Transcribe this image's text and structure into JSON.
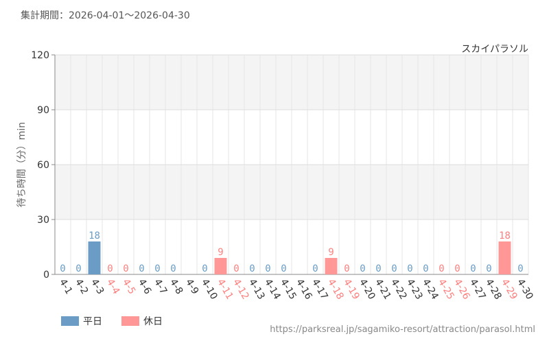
{
  "header": {
    "period": "集計期間：2026-04-01～2026-04-30"
  },
  "footer": {
    "source_url": "https://parksreal.jp/sagamiko-resort/attraction/parasol.html"
  },
  "colors": {
    "weekday": "#6a9cc5",
    "holiday": "#ff9797",
    "weekday_text": "#333333",
    "holiday_text": "#ff7f7f"
  },
  "chart_data": {
    "type": "bar",
    "title": "スカイパラソル",
    "ylabel": "待ち時間（分）min",
    "xlabel": "",
    "ylim": [
      0,
      120
    ],
    "yticks": [
      0,
      30,
      60,
      90,
      120
    ],
    "grid": true,
    "legend_position": "bottom-left",
    "categories": [
      "4-1",
      "4-2",
      "4-3",
      "4-4",
      "4-5",
      "4-6",
      "4-7",
      "4-8",
      "4-9",
      "4-10",
      "4-11",
      "4-12",
      "4-13",
      "4-14",
      "4-15",
      "4-16",
      "4-17",
      "4-18",
      "4-19",
      "4-20",
      "4-21",
      "4-22",
      "4-23",
      "4-24",
      "4-25",
      "4-26",
      "4-27",
      "4-28",
      "4-29",
      "4-30"
    ],
    "values": [
      0,
      0,
      18,
      0,
      0,
      0,
      0,
      0,
      null,
      0,
      9,
      0,
      0,
      0,
      0,
      null,
      0,
      9,
      0,
      0,
      0,
      0,
      0,
      0,
      0,
      0,
      0,
      0,
      18,
      0
    ],
    "day_type": [
      "weekday",
      "weekday",
      "weekday",
      "holiday",
      "holiday",
      "weekday",
      "weekday",
      "weekday",
      "weekday",
      "weekday",
      "holiday",
      "holiday",
      "weekday",
      "weekday",
      "weekday",
      "weekday",
      "weekday",
      "holiday",
      "holiday",
      "weekday",
      "weekday",
      "weekday",
      "weekday",
      "weekday",
      "holiday",
      "holiday",
      "weekday",
      "weekday",
      "holiday",
      "weekday"
    ],
    "series": [
      {
        "name": "平日",
        "key": "weekday"
      },
      {
        "name": "休日",
        "key": "holiday"
      }
    ]
  }
}
